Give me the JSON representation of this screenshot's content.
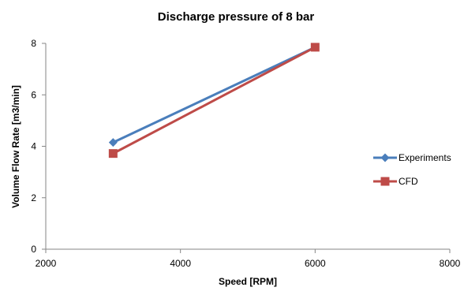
{
  "chart_data": {
    "type": "line",
    "title": "Discharge pressure of 8 bar",
    "xlabel": "Speed [RPM]",
    "ylabel": "Volume Flow Rate [m3/min]",
    "xlim": [
      2000,
      8000
    ],
    "ylim": [
      0,
      8
    ],
    "x_ticks": [
      "2000",
      "4000",
      "6000",
      "8000"
    ],
    "y_ticks": [
      "0",
      "2",
      "4",
      "6",
      "8"
    ],
    "grid": false,
    "legend_position": "right",
    "series": [
      {
        "name": "Experiments",
        "color": "#4a7ebb",
        "marker": "diamond",
        "x": [
          3000,
          6000
        ],
        "y": [
          4.15,
          7.85
        ]
      },
      {
        "name": "CFD",
        "color": "#be4b48",
        "marker": "square",
        "x": [
          3000,
          6000
        ],
        "y": [
          3.72,
          7.85
        ]
      }
    ]
  }
}
